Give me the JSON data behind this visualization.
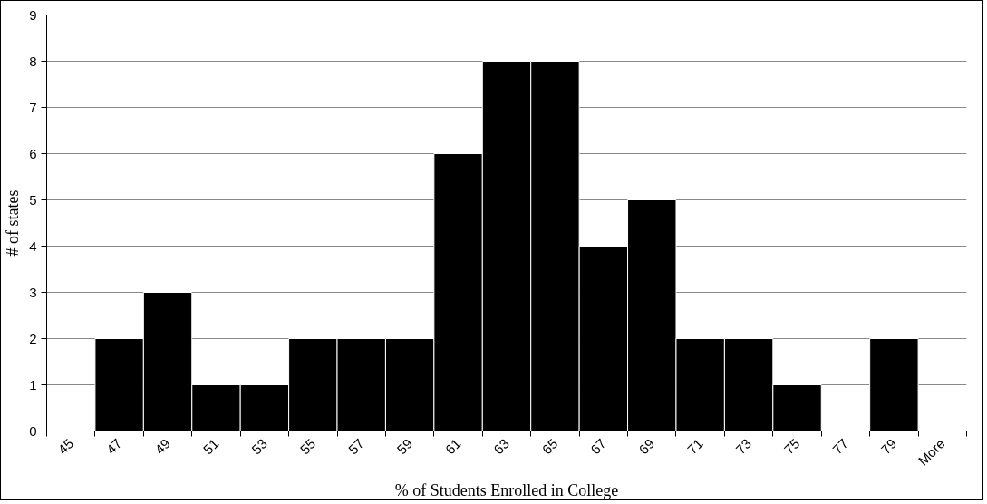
{
  "chart_data": {
    "type": "bar",
    "xlabel": "% of Students Enrolled in College",
    "ylabel": "# of states",
    "categories": [
      "45",
      "47",
      "49",
      "51",
      "53",
      "55",
      "57",
      "59",
      "61",
      "63",
      "65",
      "67",
      "69",
      "71",
      "73",
      "75",
      "77",
      "79",
      "More"
    ],
    "values": [
      0,
      2,
      3,
      1,
      1,
      2,
      2,
      2,
      6,
      8,
      8,
      4,
      5,
      2,
      2,
      1,
      0,
      2,
      0
    ],
    "color": "#000000",
    "ylim": [
      0,
      9
    ],
    "yticks": [
      0,
      1,
      2,
      3,
      4,
      5,
      6,
      7,
      8,
      9
    ],
    "grid": "y"
  }
}
